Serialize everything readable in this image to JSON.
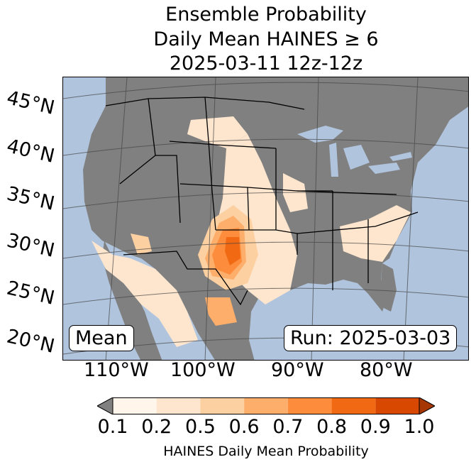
{
  "title": {
    "line1": "Ensemble Probability",
    "line2": "Daily Mean HAINES ≥ 6",
    "line3": "2025-03-11 12z-12z"
  },
  "latitude_labels": [
    "45°N",
    "40°N",
    "35°N",
    "30°N",
    "25°N",
    "20°N"
  ],
  "longitude_labels": [
    "110°W",
    "100°W",
    "90°W",
    "80°W"
  ],
  "mean_label": "Mean",
  "run_label": "Run: 2025-03-03",
  "colorbar": {
    "title": "HAINES Daily Mean Probability",
    "ticks": [
      "0.1",
      "0.2",
      "0.5",
      "0.6",
      "0.7",
      "0.8",
      "0.9",
      "1.0"
    ],
    "colors": [
      "#fff5eb",
      "#fee6ce",
      "#fdd0a2",
      "#fdae6b",
      "#fd8d3c",
      "#f16913",
      "#d94801"
    ],
    "under_color": "#808080",
    "over_color": "#a63603"
  },
  "colors": {
    "ocean": "#b0c4de",
    "land": "#808080"
  }
}
